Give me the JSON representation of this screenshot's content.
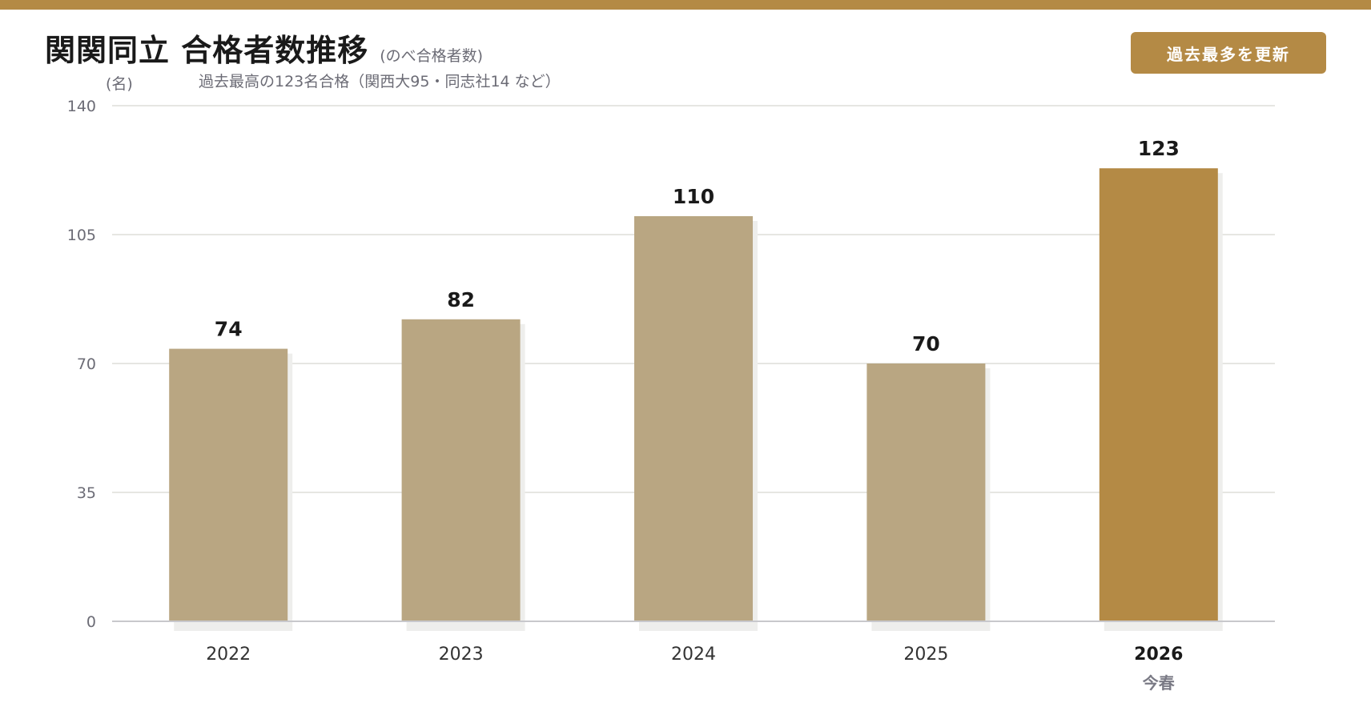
{
  "header": {
    "title": "関関同立 合格者数推移",
    "subtitle": "(のべ合格者数)",
    "note": "過去最高の123名合格（関西大95・同志社14 など）",
    "badge": "過去最多を更新"
  },
  "colors": {
    "accent": "#b48a45",
    "bar": "#b9a682",
    "shadow": "#eeeeec",
    "grid": "#e6e6e2",
    "axis": "#c8c8cc"
  },
  "chart_data": {
    "type": "bar",
    "title": "関関同立 合格者数推移",
    "ylabel": "(名)",
    "xlabel": "",
    "categories": [
      "2022",
      "2023",
      "2024",
      "2025",
      "2026"
    ],
    "category_sublabels": [
      "",
      "",
      "",
      "",
      "今春"
    ],
    "values": [
      74,
      82,
      110,
      70,
      123
    ],
    "highlight_index": 4,
    "ylim": [
      0,
      140
    ],
    "yticks": [
      0,
      35,
      70,
      105,
      140
    ],
    "grid": true
  }
}
